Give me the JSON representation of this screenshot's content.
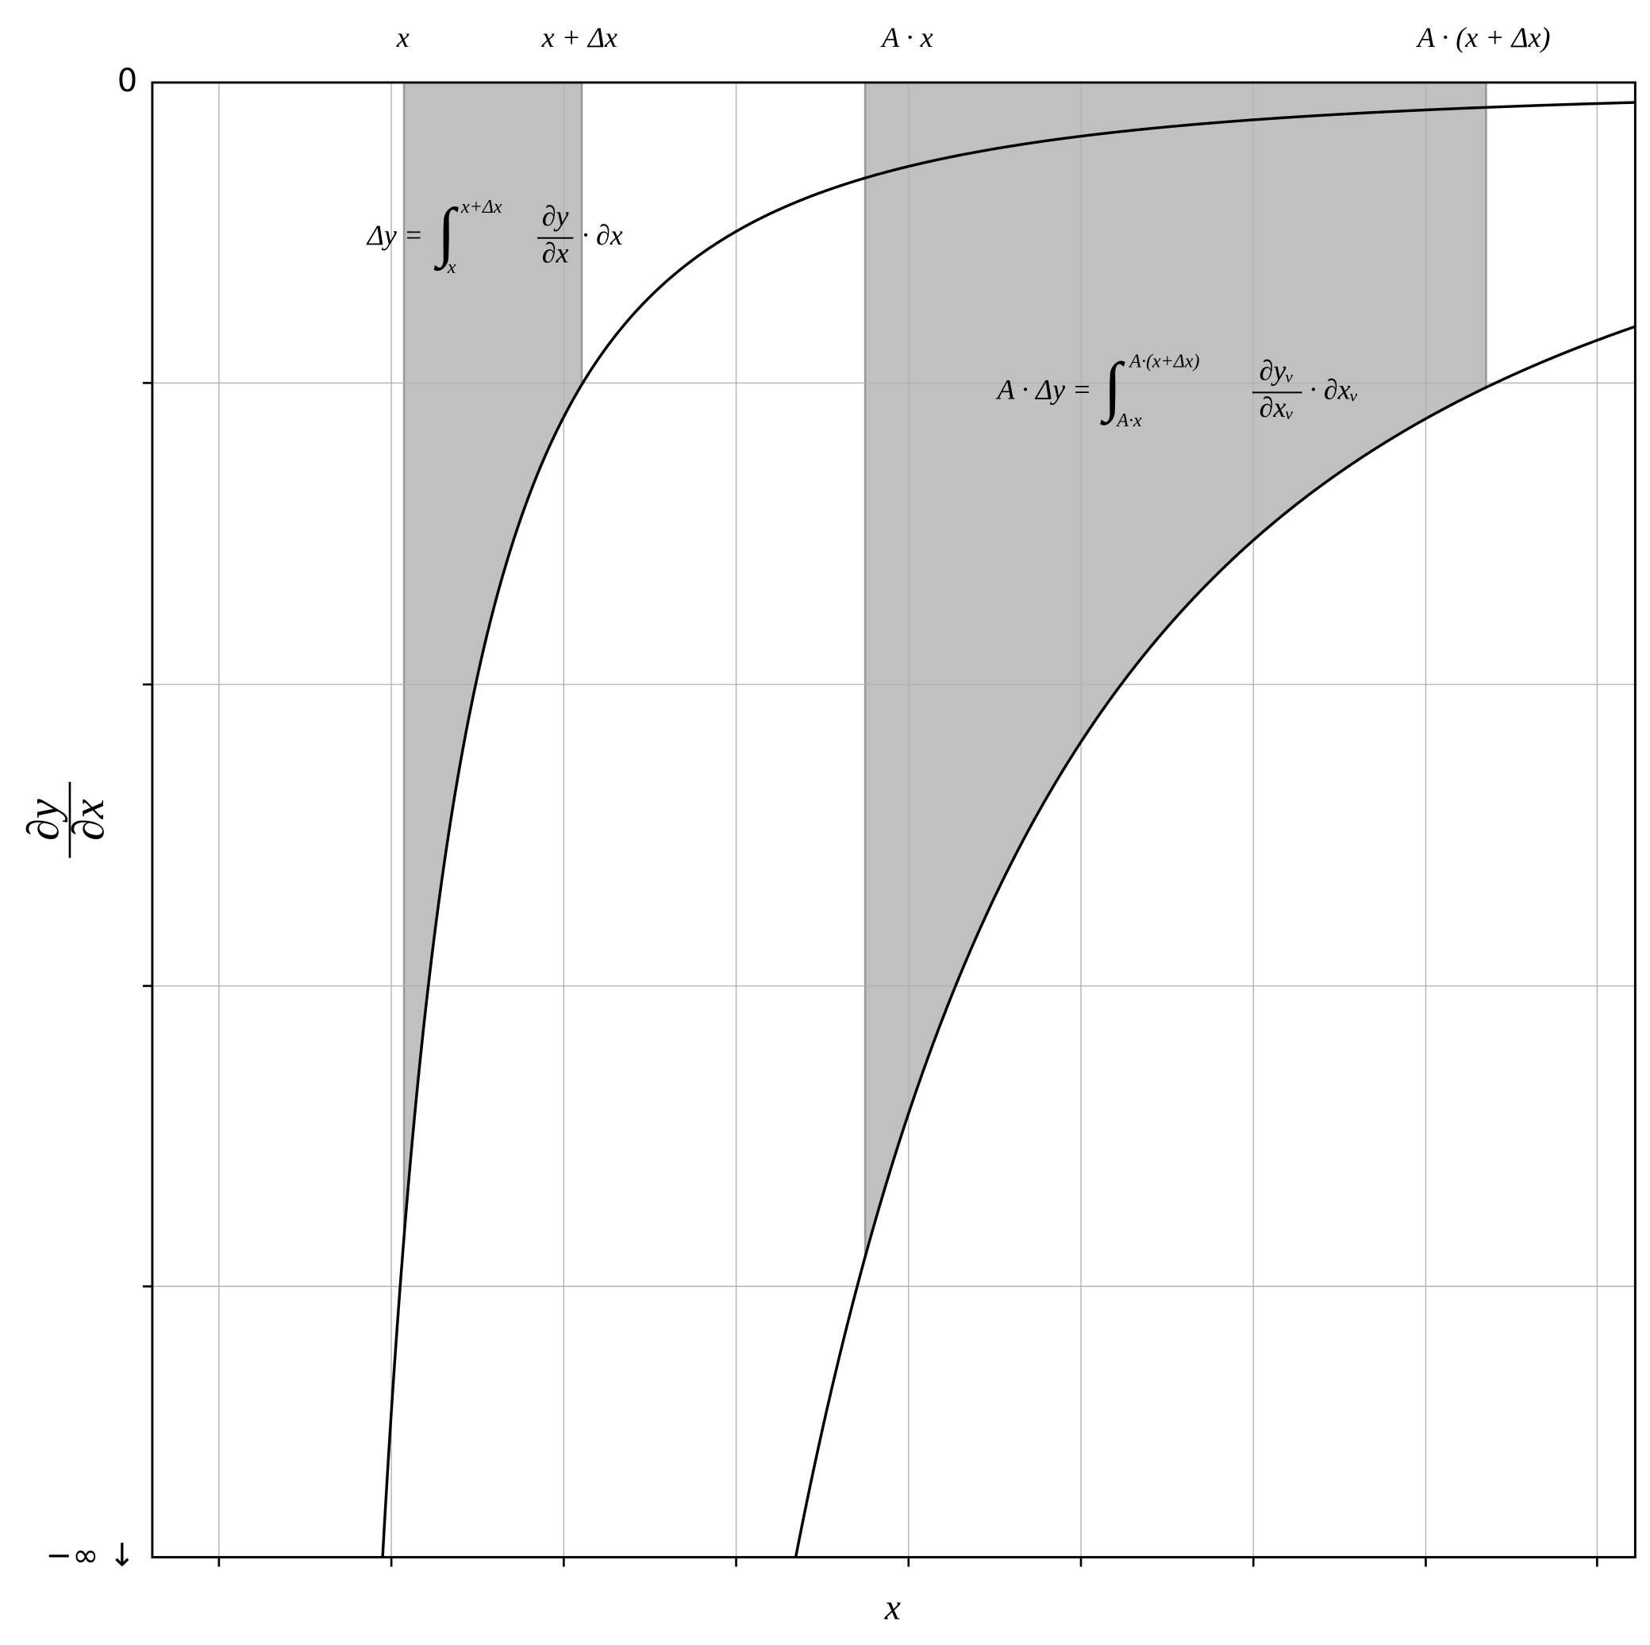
{
  "top_labels": [
    "x",
    "x + Δx",
    "A · x",
    "A · (x + Δx)"
  ],
  "annotation_1": {
    "lhs": "Δy =",
    "integral": "∫",
    "lower": "x",
    "upper": "x+Δx",
    "numerator": "∂y",
    "denominator": "∂x",
    "rhs": "· ∂x"
  },
  "annotation_2": {
    "lhs": "A · Δy =",
    "integral": "∫",
    "lower": "A·x",
    "upper": "A·(x+Δx)",
    "numerator": "∂yᵥ",
    "denominator": "∂xᵥ",
    "rhs": "· ∂xᵥ"
  },
  "x_axis_label": "x",
  "y_axis_label": {
    "numerator": "∂y",
    "denominator": "∂x"
  },
  "y_tick_labels": [
    "0",
    "−∞ ↓"
  ]
}
